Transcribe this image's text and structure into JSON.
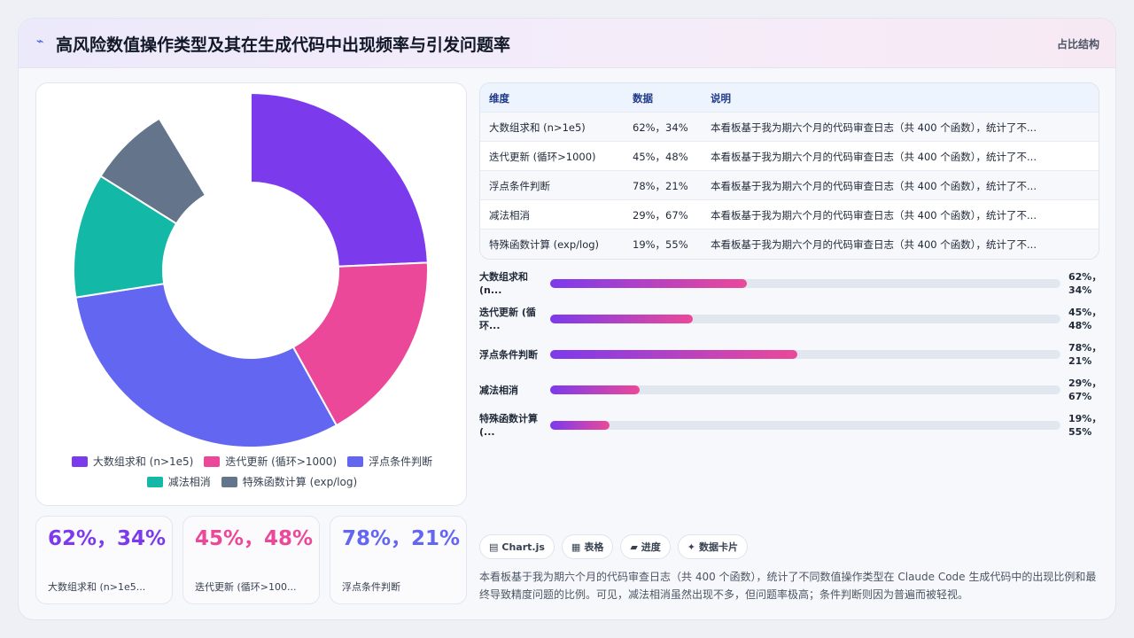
{
  "header": {
    "logo": "⌁",
    "title": "高风险数值操作类型及其在生成代码中出现频率与引发问题率",
    "tag": "占比结构"
  },
  "chart_data": {
    "type": "pie",
    "categories": [
      "大数组求和 (n>1e5)",
      "迭代更新 (循环>1000)",
      "浮点条件判断",
      "减法相消",
      "特殊函数计算 (exp/log)"
    ],
    "values": [
      62,
      45,
      78,
      29,
      19
    ],
    "colors": [
      "#7c3aed",
      "#ec4899",
      "#6366f1",
      "#14b8a6",
      "#64748b"
    ],
    "hidden": [
      false,
      false,
      false,
      false,
      false
    ],
    "omitted_slice": 22,
    "legend": "bottom"
  },
  "table": {
    "headers": [
      "维度",
      "数据",
      "说明"
    ],
    "rows": [
      [
        "大数组求和 (n>1e5)",
        "62%，34%",
        "本看板基于我为期六个月的代码审查日志（共 400 个函数），统计了不..."
      ],
      [
        "迭代更新 (循环>1000)",
        "45%，48%",
        "本看板基于我为期六个月的代码审查日志（共 400 个函数），统计了不..."
      ],
      [
        "浮点条件判断",
        "78%，21%",
        "本看板基于我为期六个月的代码审查日志（共 400 个函数），统计了不..."
      ],
      [
        "减法相消",
        "29%，67%",
        "本看板基于我为期六个月的代码审查日志（共 400 个函数），统计了不..."
      ],
      [
        "特殊函数计算 (exp/log)",
        "19%，55%",
        "本看板基于我为期六个月的代码审查日志（共 400 个函数），统计了不..."
      ]
    ]
  },
  "progress": [
    {
      "label": "大数组求和 (n...",
      "value": "62%，34%",
      "fill": 0.385
    },
    {
      "label": "迭代更新 (循环...",
      "value": "45%，48%",
      "fill": 0.28
    },
    {
      "label": "浮点条件判断",
      "value": "78%，21%",
      "fill": 0.485
    },
    {
      "label": "减法相消",
      "value": "29%，67%",
      "fill": 0.175
    },
    {
      "label": "特殊函数计算 (...",
      "value": "19%，55%",
      "fill": 0.117
    }
  ],
  "kpis": [
    {
      "value": "62%，34%",
      "label": "大数组求和 (n>1e5...",
      "color": "#7c3aed"
    },
    {
      "value": "45%，48%",
      "label": "迭代更新 (循环>100...",
      "color": "#ec4899"
    },
    {
      "value": "78%，21%",
      "label": "浮点条件判断",
      "color": "#6366f1"
    }
  ],
  "chips": [
    {
      "icon": "▤",
      "label": "Chart.js"
    },
    {
      "icon": "▦",
      "label": "表格"
    },
    {
      "icon": "▰",
      "label": "进度"
    },
    {
      "icon": "✦",
      "label": "数据卡片"
    }
  ],
  "description": "本看板基于我为期六个月的代码审查日志（共 400 个函数），统计了不同数值操作类型在 Claude Code 生成代码中的出现比例和最终导致精度问题的比例。可见，减法相消虽然出现不多，但问题率极高；条件判断则因为普遍而被轻视。"
}
